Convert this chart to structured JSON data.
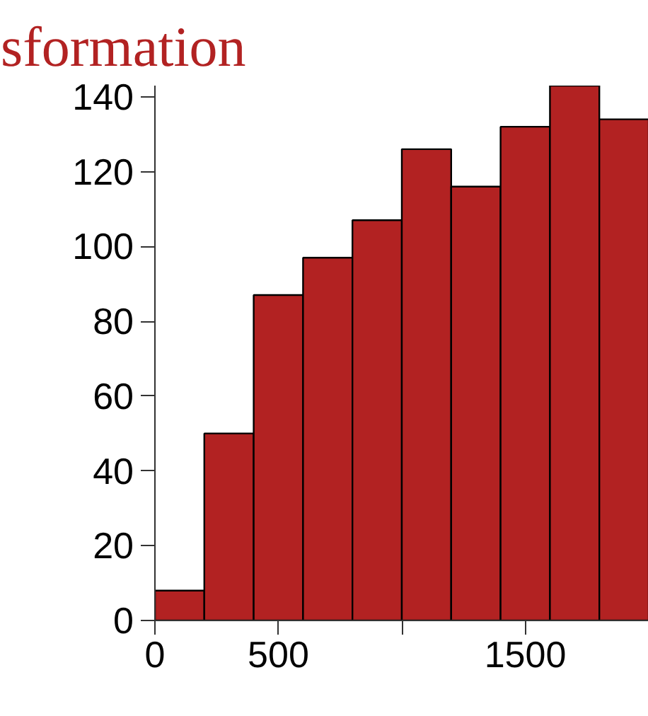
{
  "chart_data": {
    "type": "histogram",
    "title": "sformation",
    "bins": [
      0,
      200,
      400,
      600,
      800,
      1000,
      1200,
      1400,
      1600,
      1800,
      2000
    ],
    "values": [
      8,
      50,
      87,
      97,
      107,
      126,
      116,
      132,
      143,
      134
    ],
    "color": "#b22222",
    "xlim": [
      0,
      2000
    ],
    "xticks": [
      0,
      500,
      {
        "value": 1000,
        "label": null
      },
      1500
    ],
    "ylim": [
      0,
      143
    ],
    "yticks": [
      0,
      20,
      40,
      60,
      80,
      100,
      120,
      140
    ],
    "grid": false
  }
}
